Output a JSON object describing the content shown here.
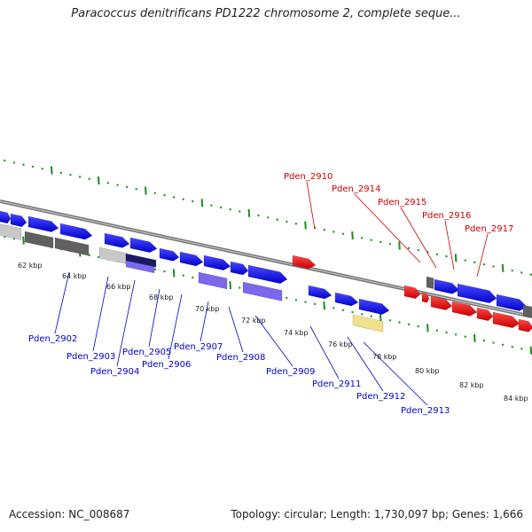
{
  "title": "Paracoccus denitrificans PD1222 chromosome 2, complete seque...",
  "footer": {
    "accession": "Accession: NC_008687",
    "summary": "Topology: circular; Length: 1,730,097 bp; Genes: 1,666"
  },
  "kbp_ticks": [
    "62 kbp",
    "64 kbp",
    "66 kbp",
    "68 kbp",
    "70 kbp",
    "72 kbp",
    "74 kbp",
    "76 kbp",
    "78 kbp",
    "80 kbp",
    "82 kbp",
    "84 kbp"
  ],
  "reverse_labels": [
    "Pden_2902",
    "Pden_2903",
    "Pden_2904",
    "Pden_2905",
    "Pden_2906",
    "Pden_2907",
    "Pden_2908",
    "Pden_2909",
    "Pden_2911",
    "Pden_2912",
    "Pden_2913"
  ],
  "forward_labels": [
    "Pden_2910",
    "Pden_2914",
    "Pden_2915",
    "Pden_2916",
    "Pden_2917"
  ],
  "colors": {
    "forward_gene": "#ff0000",
    "reverse_gene": "#0000ff",
    "gc_gray": "#606060",
    "light_gray": "#c8c8c8",
    "lavender": "#7b68ee",
    "navy": "#1a1a66",
    "pale_yellow": "#f0e08c",
    "tick_green": "#1e8c1e",
    "backbone": "#888888"
  }
}
